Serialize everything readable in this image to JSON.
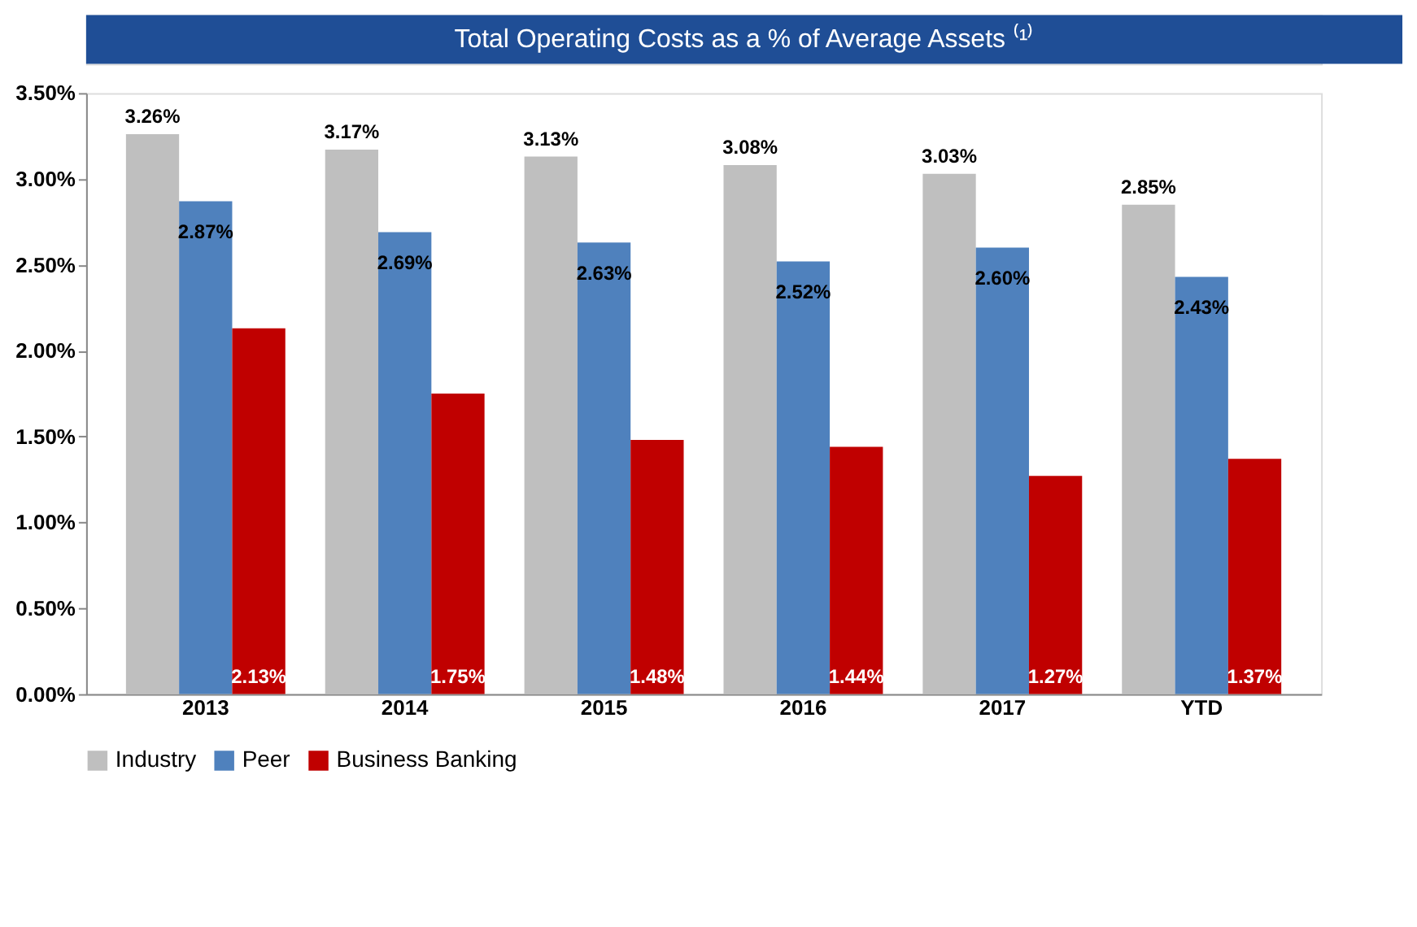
{
  "chart_data": {
    "type": "bar",
    "title": "Total Operating Costs as a % of Average Assets ⁽¹⁾",
    "categories": [
      "2013",
      "2014",
      "2015",
      "2016",
      "2017",
      "YTD"
    ],
    "series": [
      {
        "name": "Industry",
        "color": "#bfbfbf",
        "values": [
          3.26,
          3.17,
          3.13,
          3.08,
          3.03,
          2.85
        ],
        "value_labels": [
          "3.26%",
          "3.17%",
          "3.13%",
          "3.08%",
          "3.03%",
          "2.85%"
        ]
      },
      {
        "name": "Peer",
        "color": "#4f81bd",
        "values": [
          2.87,
          2.69,
          2.63,
          2.52,
          2.6,
          2.43
        ],
        "value_labels": [
          "2.87%",
          "2.69%",
          "2.63%",
          "2.52%",
          "2.60%",
          "2.43%"
        ]
      },
      {
        "name": "Business Banking",
        "color": "#c00000",
        "values": [
          2.13,
          1.75,
          1.48,
          1.44,
          1.27,
          1.37
        ],
        "value_labels": [
          "2.13%",
          "1.75%",
          "1.48%",
          "1.44%",
          "1.27%",
          "1.37%"
        ]
      }
    ],
    "ylim": [
      0,
      3.5
    ],
    "yticks": [
      {
        "value": 0,
        "label": "0.00%"
      },
      {
        "value": 0.5,
        "label": "0.50%"
      },
      {
        "value": 1,
        "label": "1.00%"
      },
      {
        "value": 1.5,
        "label": "1.50%"
      },
      {
        "value": 2,
        "label": "2.00%"
      },
      {
        "value": 2.5,
        "label": "2.50%"
      },
      {
        "value": 3,
        "label": "3.00%"
      },
      {
        "value": 3.5,
        "label": "3.50%"
      }
    ],
    "grid": false,
    "legend": "bottom"
  }
}
